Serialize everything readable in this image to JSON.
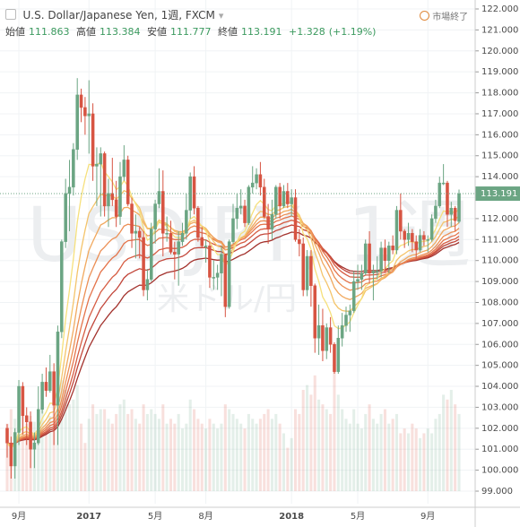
{
  "header": {
    "title": "U.S. Dollar/Japanese Yen, 1週, FXCM",
    "open_label": "始値",
    "high_label": "高値",
    "low_label": "安値",
    "close_label": "終値",
    "change": "+1.328",
    "change_pct": "(+1.19%)",
    "status": "市場終了"
  },
  "chart_data": {
    "type": "candlestick",
    "watermark": {
      "symbol": "USDJPY, 1週",
      "description": "米ドル/円"
    },
    "open": [
      102.0,
      101.3,
      100.2,
      101.8,
      104.0,
      102.6,
      102.3,
      101.0,
      101.3,
      102.9,
      104.2,
      103.8,
      104.7,
      103.1,
      106.6,
      110.9,
      113.2,
      113.5,
      115.3,
      117.9,
      117.3,
      116.9,
      117.0,
      114.5,
      114.6,
      115.1,
      112.6,
      113.2,
      112.9,
      112.1,
      114.0,
      114.8,
      112.7,
      111.3,
      111.4,
      111.1,
      108.6,
      109.1,
      111.5,
      112.7,
      113.3,
      111.3,
      111.3,
      110.4,
      110.3,
      110.9,
      111.3,
      112.4,
      114.0,
      112.5,
      111.1,
      110.7,
      110.7,
      109.2,
      109.2,
      109.4,
      110.3,
      107.8,
      110.9,
      112.0,
      112.5,
      112.6,
      111.8,
      113.5,
      113.7,
      114.1,
      113.5,
      112.1,
      111.5,
      112.2,
      113.5,
      112.6,
      113.3,
      112.7,
      113.0,
      111.0,
      110.8,
      108.6,
      110.2,
      108.8,
      106.3,
      106.9,
      105.7,
      106.8,
      106.0,
      104.7,
      106.3,
      106.9,
      107.4,
      107.6,
      109.0,
      109.1,
      109.4,
      110.8,
      109.4,
      109.5,
      109.5,
      110.6,
      110.0,
      110.7,
      110.5,
      112.4,
      111.4,
      111.0,
      111.3,
      110.9,
      110.5,
      111.2,
      111.0,
      111.0,
      112.0,
      112.6,
      113.7,
      113.7,
      112.2,
      112.5,
      111.863
    ],
    "high": [
      102.2,
      101.6,
      102.0,
      104.3,
      104.2,
      103.0,
      102.8,
      101.8,
      104.0,
      104.6,
      104.9,
      105.5,
      105.1,
      106.9,
      111.0,
      113.9,
      114.8,
      115.6,
      118.7,
      118.2,
      117.8,
      118.6,
      117.5,
      115.4,
      115.4,
      115.2,
      113.9,
      114.9,
      113.8,
      114.7,
      115.5,
      115.0,
      113.0,
      112.2,
      111.6,
      111.4,
      109.6,
      111.8,
      112.9,
      114.4,
      114.3,
      112.1,
      111.9,
      110.9,
      111.4,
      111.8,
      113.2,
      114.2,
      114.5,
      112.6,
      111.6,
      111.0,
      110.9,
      110.0,
      109.8,
      110.7,
      110.3,
      111.0,
      112.7,
      113.2,
      113.4,
      112.9,
      113.6,
      114.5,
      114.4,
      114.7,
      113.9,
      112.7,
      112.9,
      113.6,
      113.7,
      113.6,
      113.7,
      113.4,
      113.4,
      111.5,
      111.1,
      110.5,
      110.5,
      108.9,
      107.9,
      107.7,
      107.0,
      107.3,
      106.1,
      106.9,
      107.5,
      107.8,
      107.9,
      109.5,
      109.8,
      109.8,
      111.0,
      111.4,
      109.8,
      110.2,
      110.9,
      111.0,
      110.9,
      111.2,
      112.6,
      113.2,
      111.5,
      111.8,
      111.5,
      111.2,
      111.5,
      111.4,
      111.2,
      112.2,
      112.9,
      114.0,
      114.6,
      113.8,
      112.8,
      112.6,
      113.384
    ],
    "low": [
      100.6,
      99.6,
      99.6,
      101.2,
      101.7,
      101.2,
      100.1,
      100.1,
      101.2,
      102.7,
      103.5,
      103.7,
      101.2,
      101.2,
      106.3,
      110.6,
      111.4,
      113.1,
      114.8,
      116.6,
      116.0,
      115.1,
      113.8,
      112.6,
      112.1,
      112.1,
      111.6,
      112.6,
      111.6,
      111.7,
      113.8,
      112.6,
      110.6,
      110.1,
      110.1,
      108.3,
      108.1,
      109.0,
      110.8,
      112.5,
      110.2,
      110.9,
      110.3,
      109.1,
      108.8,
      110.7,
      111.0,
      112.0,
      112.2,
      110.9,
      110.6,
      109.9,
      108.7,
      108.6,
      108.6,
      108.3,
      107.3,
      107.7,
      110.8,
      111.5,
      112.2,
      111.6,
      111.7,
      113.2,
      113.4,
      113.1,
      112.0,
      110.8,
      111.0,
      112.0,
      112.0,
      112.5,
      112.5,
      112.1,
      110.9,
      110.2,
      108.3,
      108.3,
      107.8,
      105.6,
      105.5,
      105.2,
      105.3,
      105.6,
      104.6,
      104.6,
      105.9,
      106.6,
      106.6,
      107.5,
      108.6,
      108.6,
      109.3,
      108.9,
      108.1,
      109.1,
      109.2,
      109.4,
      109.4,
      110.3,
      110.3,
      111.0,
      110.6,
      110.7,
      110.4,
      110.1,
      110.4,
      110.7,
      110.4,
      110.9,
      111.8,
      112.5,
      113.6,
      111.6,
      111.6,
      111.4,
      111.777
    ],
    "close": [
      101.3,
      100.2,
      101.8,
      104.0,
      102.6,
      102.3,
      101.0,
      101.3,
      102.9,
      104.2,
      103.8,
      104.7,
      103.1,
      106.6,
      110.9,
      113.2,
      113.5,
      115.3,
      117.9,
      117.3,
      116.9,
      117.0,
      114.5,
      114.6,
      115.1,
      112.6,
      113.2,
      112.9,
      112.1,
      114.0,
      114.8,
      112.7,
      111.3,
      111.4,
      111.1,
      108.6,
      109.1,
      111.5,
      112.7,
      113.3,
      111.3,
      111.3,
      110.4,
      110.3,
      110.9,
      111.3,
      112.4,
      114.0,
      112.5,
      111.1,
      110.7,
      110.7,
      109.2,
      109.2,
      109.4,
      110.3,
      107.8,
      110.9,
      112.0,
      112.5,
      112.6,
      111.8,
      113.5,
      113.7,
      114.1,
      113.5,
      112.1,
      111.5,
      112.2,
      113.5,
      112.6,
      113.3,
      112.7,
      113.0,
      111.0,
      110.8,
      108.6,
      110.2,
      108.8,
      106.3,
      106.9,
      105.7,
      106.8,
      106.0,
      104.7,
      106.3,
      106.9,
      107.4,
      107.6,
      109.0,
      109.1,
      109.4,
      110.8,
      109.4,
      109.5,
      109.5,
      110.6,
      110.0,
      110.7,
      110.5,
      112.4,
      111.4,
      111.0,
      111.3,
      110.9,
      110.5,
      111.2,
      111.0,
      111.0,
      112.0,
      112.6,
      113.7,
      113.7,
      112.2,
      112.5,
      111.9,
      113.191
    ],
    "volume": [
      70,
      85,
      75,
      95,
      80,
      70,
      78,
      72,
      80,
      85,
      70,
      78,
      100,
      120,
      115,
      105,
      90,
      95,
      110,
      70,
      50,
      75,
      90,
      80,
      85,
      85,
      75,
      70,
      80,
      90,
      95,
      80,
      85,
      75,
      70,
      90,
      80,
      85,
      80,
      75,
      90,
      70,
      75,
      70,
      80,
      65,
      70,
      95,
      85,
      75,
      70,
      65,
      75,
      70,
      65,
      70,
      90,
      85,
      80,
      75,
      70,
      65,
      80,
      75,
      70,
      75,
      80,
      85,
      75,
      80,
      70,
      60,
      45,
      55,
      85,
      80,
      105,
      110,
      100,
      120,
      95,
      90,
      85,
      80,
      130,
      100,
      85,
      75,
      70,
      85,
      70,
      65,
      80,
      90,
      75,
      70,
      80,
      85,
      70,
      75,
      80,
      60,
      65,
      60,
      70,
      65,
      55,
      60,
      65,
      60,
      75,
      80,
      100,
      95,
      105,
      90,
      80
    ],
    "volume_ylim": [
      0,
      500
    ],
    "up_color": "#6ba583",
    "down_color": "#d75442",
    "ma_ribbon": {
      "periods": [
        8,
        13,
        18,
        23,
        28,
        34,
        40,
        48
      ],
      "colors": [
        "#f6e07c",
        "#f4c46b",
        "#f1a95f",
        "#ec8f55",
        "#e4744b",
        "#d65c42",
        "#c2463a",
        "#a3322d"
      ]
    },
    "ylim": [
      99,
      122
    ],
    "yticks": [
      {
        "value": 99,
        "label": "99.000"
      },
      {
        "value": 100,
        "label": "100.000"
      },
      {
        "value": 101,
        "label": "101.000"
      },
      {
        "value": 102,
        "label": "102.000"
      },
      {
        "value": 103,
        "label": "103.000"
      },
      {
        "value": 104,
        "label": "104.000"
      },
      {
        "value": 105,
        "label": "105.000"
      },
      {
        "value": 106,
        "label": "106.000"
      },
      {
        "value": 107,
        "label": "107.000"
      },
      {
        "value": 108,
        "label": "108.000"
      },
      {
        "value": 109,
        "label": "109.000"
      },
      {
        "value": 110,
        "label": "110.000"
      },
      {
        "value": 111,
        "label": "111.000"
      },
      {
        "value": 112,
        "label": "112.000"
      },
      {
        "value": 113,
        "label": "113.000"
      },
      {
        "value": 114,
        "label": "114.000"
      },
      {
        "value": 115,
        "label": "115.000"
      },
      {
        "value": 116,
        "label": "116.000"
      },
      {
        "value": 117,
        "label": "117.000"
      },
      {
        "value": 118,
        "label": "118.000"
      },
      {
        "value": 119,
        "label": "119.000"
      },
      {
        "value": 120,
        "label": "120.000"
      },
      {
        "value": 121,
        "label": "121.000"
      },
      {
        "value": 122,
        "label": "122.000"
      }
    ],
    "xticks": [
      {
        "value": 3,
        "label": "9月"
      },
      {
        "value": 21,
        "label": "2017"
      },
      {
        "value": 38,
        "label": "5月"
      },
      {
        "value": 51,
        "label": "8月"
      },
      {
        "value": 73,
        "label": "2018"
      },
      {
        "value": 90,
        "label": "5月"
      },
      {
        "value": 108,
        "label": "9月"
      }
    ],
    "grid": true
  }
}
